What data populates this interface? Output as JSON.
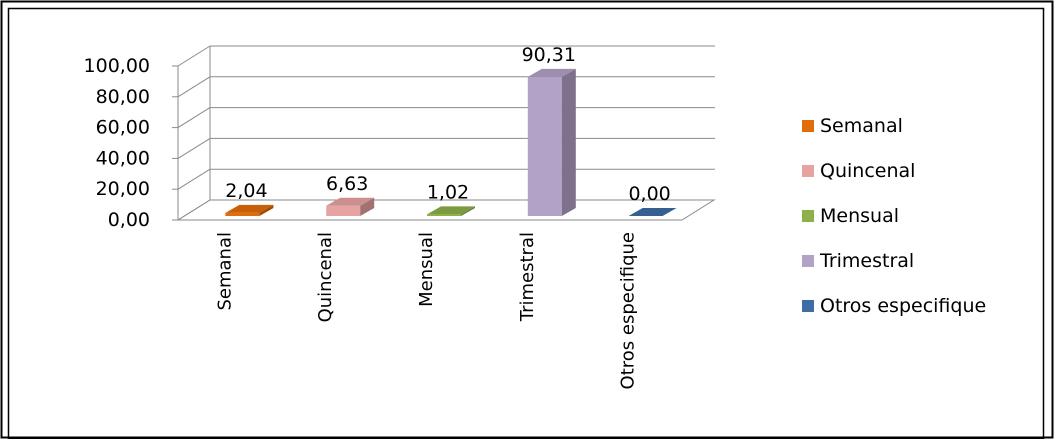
{
  "chart_data": {
    "type": "bar",
    "categories": [
      "Semanal",
      "Quincenal",
      "Mensual",
      "Trimestral",
      "Otros especifique"
    ],
    "values": [
      2.04,
      6.63,
      1.02,
      90.31,
      0.0
    ],
    "data_labels": [
      "2,04",
      "6,63",
      "1,02",
      "90,31",
      "0,00"
    ],
    "y_ticks": [
      "0,00",
      "20,00",
      "40,00",
      "60,00",
      "80,00",
      "100,00"
    ],
    "ylim": [
      0,
      100
    ],
    "grid": true,
    "legend_position": "right",
    "colors": [
      "#e36c0a",
      "#e6a3a1",
      "#8db04a",
      "#b3a2c7",
      "#3e6da6"
    ],
    "legend": [
      "Semanal",
      "Quincenal",
      "Mensual",
      "Trimestral",
      "Otros especifique"
    ]
  }
}
